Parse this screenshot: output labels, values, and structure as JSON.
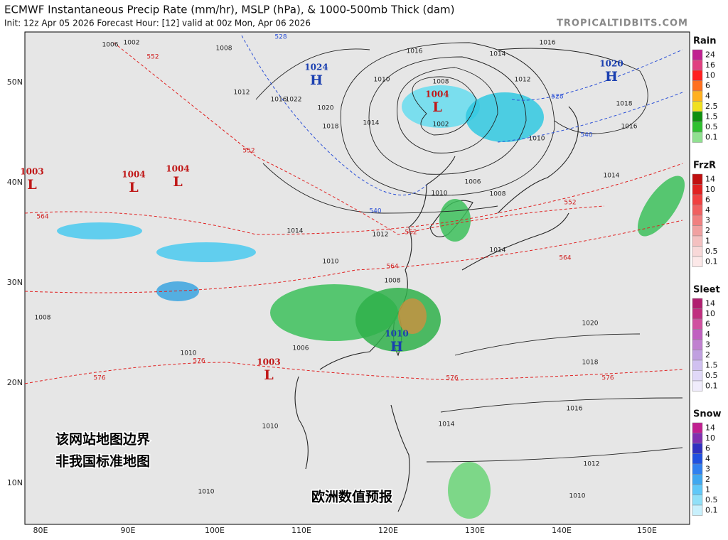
{
  "header": {
    "title": "ECMWF Instantaneous Precip Rate (mm/hr), MSLP (hPa), & 1000-500mb Thick (dam)",
    "subtitle": "Init: 12z Apr 05 2026   Forecast Hour: [12]   valid at 00z Mon, Apr 06 2026",
    "site": "TROPICALTIDBITS.COM"
  },
  "map": {
    "lat_labels": [
      "50N",
      "40N",
      "30N",
      "20N",
      "10N"
    ],
    "lon_labels": [
      "80E",
      "90E",
      "100E",
      "110E",
      "120E",
      "130E",
      "140E",
      "150E"
    ],
    "centers": [
      {
        "value": "1024",
        "kind": "H"
      },
      {
        "value": "1020",
        "kind": "H"
      },
      {
        "value": "1004",
        "kind": "L"
      },
      {
        "value": "1003",
        "kind": "L"
      },
      {
        "value": "1004",
        "kind": "L"
      },
      {
        "value": "1004",
        "kind": "L"
      },
      {
        "value": "1010",
        "kind": "H"
      },
      {
        "value": "1003",
        "kind": "L"
      }
    ],
    "isobar_labels": [
      "1002",
      "1006",
      "1008",
      "1012",
      "1016",
      "1022",
      "1020",
      "1018",
      "1014",
      "1010",
      "1008",
      "1002",
      "1012",
      "1016",
      "1014",
      "1016",
      "1018",
      "1016",
      "1010",
      "1014",
      "1010",
      "1008",
      "1006",
      "1012",
      "1014",
      "1010",
      "1008",
      "1006",
      "1020",
      "1018",
      "1016",
      "1014",
      "1012",
      "1010",
      "1008",
      "1010",
      "1010",
      "1010",
      "1014"
    ],
    "thickness_labels": [
      "552",
      "552",
      "552",
      "552",
      "564",
      "564",
      "576",
      "576",
      "576",
      "564",
      "576",
      "528",
      "540",
      "528",
      "540"
    ]
  },
  "legend": [
    {
      "title": "Rain",
      "ticks": [
        24,
        16,
        10,
        6,
        4,
        2.5,
        1.5,
        0.5,
        0.1
      ]
    },
    {
      "title": "FrzR",
      "ticks": [
        14,
        10,
        6,
        4,
        3,
        2,
        1,
        0.5,
        0.1
      ]
    },
    {
      "title": "Sleet",
      "ticks": [
        14,
        10,
        6,
        4,
        3,
        2,
        1.5,
        0.5,
        0.1
      ]
    },
    {
      "title": "Snow",
      "ticks": [
        14,
        10,
        6,
        4,
        3,
        2,
        1,
        0.5,
        0.1
      ]
    }
  ],
  "watermarks": [
    "该网站地图边界",
    "非我国标准地图",
    "欧洲数值预报"
  ]
}
